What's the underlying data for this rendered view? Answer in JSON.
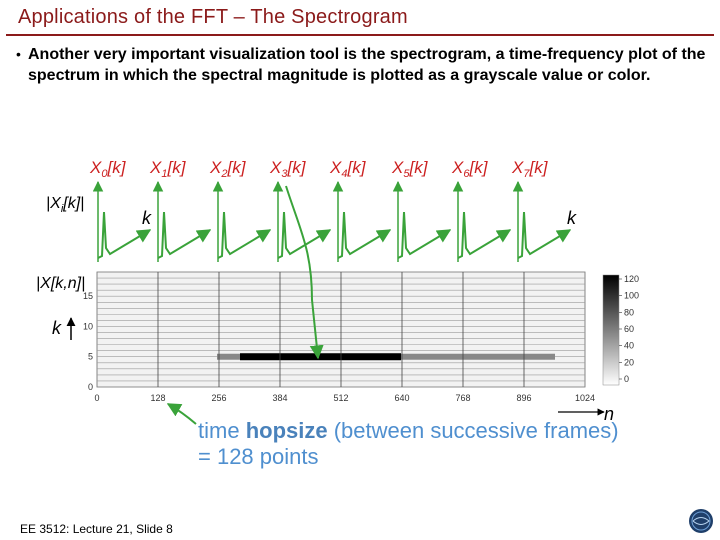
{
  "slide": {
    "title": "Applications of the FFT – The Spectrogram",
    "bullet_marker": "•",
    "bullet": "Another very important visualization tool is the spectrogram, a time-frequency plot of the spectrum in which the spectral magnitude is plotted as a grayscale value or color.",
    "footer": "EE 3512: Lecture 21, Slide 8"
  },
  "figure": {
    "frame_labels": [
      {
        "base": "X",
        "sub": "0",
        "arg": "[k]"
      },
      {
        "base": "X",
        "sub": "1",
        "arg": "[k]"
      },
      {
        "base": "X",
        "sub": "2",
        "arg": "[k]"
      },
      {
        "base": "X",
        "sub": "3",
        "arg": "[k]"
      },
      {
        "base": "X",
        "sub": "4",
        "arg": "[k]"
      },
      {
        "base": "X",
        "sub": "5",
        "arg": "[k]"
      },
      {
        "base": "X",
        "sub": "6",
        "arg": "[k]"
      },
      {
        "base": "X",
        "sub": "7",
        "arg": "[k]"
      }
    ],
    "magnitude_label": {
      "base": "|X",
      "sub": "i",
      "arg": "[k]|"
    },
    "k_label": "k",
    "spectrogram_label": "|X[k,n]|",
    "n_label": "n",
    "colorbar_ticks": [
      "120",
      "100",
      "80",
      "60",
      "40",
      "20",
      "0"
    ],
    "colors": {
      "frame_label": "#cc2222",
      "arrow": "#3aa33a",
      "caption": "#4f8fcf"
    }
  },
  "chart_data": {
    "type": "heatmap",
    "xlabel": "n",
    "ylabel": "k",
    "x_ticks": [
      "0",
      "128",
      "256",
      "384",
      "512",
      "640",
      "768",
      "896",
      "1024"
    ],
    "y_ticks": [
      "0",
      "5",
      "10",
      "15"
    ],
    "xlim": [
      0,
      1024
    ],
    "ylim": [
      0,
      19
    ],
    "colorbar_range": [
      0,
      120
    ],
    "peak_bin": 5,
    "frame_hop": 128,
    "highlight_frames": [
      384,
      512
    ]
  },
  "caption": {
    "prefix": "time ",
    "bold": "hopsize",
    "suffix": " (between successive frames)",
    "line2": "= 128 points"
  }
}
